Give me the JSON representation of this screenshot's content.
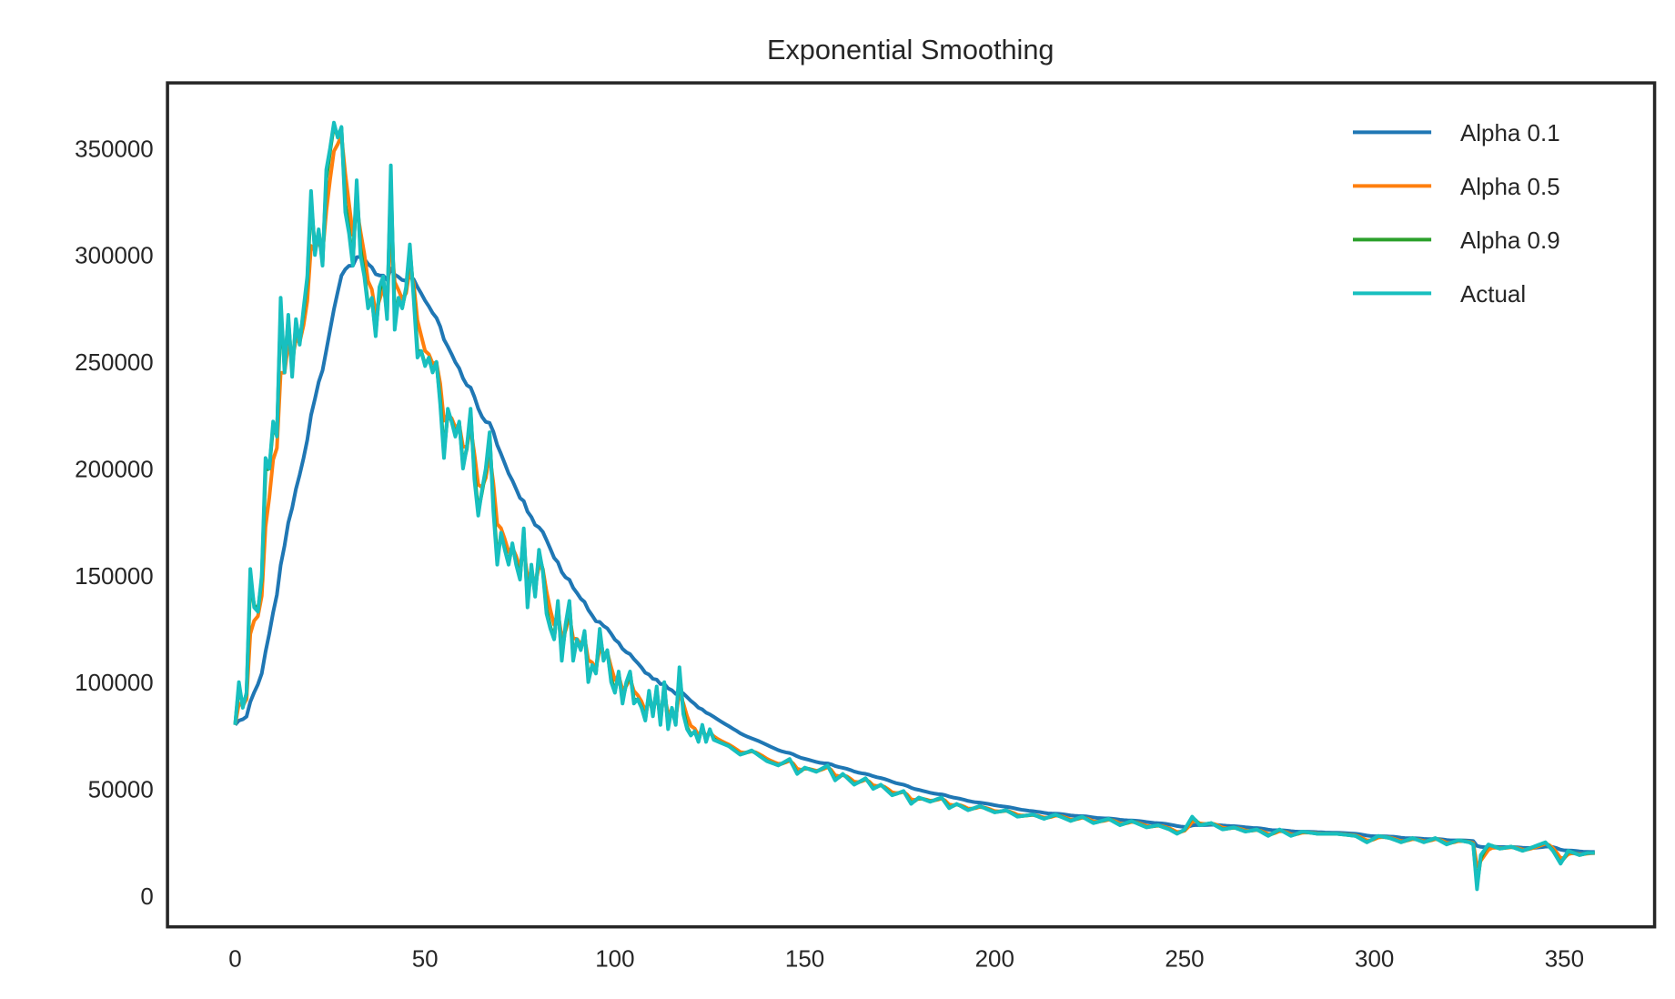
{
  "chart_data": {
    "type": "line",
    "title": "Exponential Smoothing",
    "xlabel": "",
    "ylabel": "",
    "xlim": [
      -18,
      374
    ],
    "ylim": [
      -15000,
      380000
    ],
    "x_ticks": [
      "0",
      "50",
      "100",
      "150",
      "200",
      "250",
      "300",
      "350"
    ],
    "y_ticks": [
      "0",
      "50000",
      "100000",
      "150000",
      "200000",
      "250000",
      "300000",
      "350000"
    ],
    "grid": false,
    "legend_position": "top-right",
    "legend": [
      "Alpha 0.1",
      "Alpha 0.5",
      "Alpha 0.9",
      "Actual"
    ],
    "colors": {
      "Alpha 0.1": "#1f77b4",
      "Alpha 0.5": "#ff7f0e",
      "Alpha 0.9": "#2ca02c",
      "Actual": "#17bfbf",
      "frame": "#262626"
    },
    "smoothing_alphas": [
      0.1,
      0.5,
      0.9
    ],
    "series_note_keys": [
      "x",
      "actual"
    ],
    "actual_keypoints": {
      "x": [
        0,
        1,
        2,
        3,
        4,
        5,
        6,
        7,
        8,
        9,
        10,
        11,
        12,
        13,
        14,
        15,
        16,
        17,
        18,
        19,
        20,
        21,
        22,
        23,
        24,
        25,
        26,
        27,
        28,
        29,
        30,
        31,
        32,
        33,
        34,
        35,
        36,
        37,
        38,
        39,
        40,
        41,
        42,
        43,
        44,
        45,
        46,
        47,
        48,
        49,
        50,
        51,
        52,
        53,
        54,
        55,
        56,
        57,
        58,
        59,
        60,
        61,
        62,
        63,
        64,
        65,
        66,
        67,
        68,
        69,
        70,
        71,
        72,
        73,
        74,
        75,
        76,
        77,
        78,
        79,
        80,
        81,
        82,
        83,
        84,
        85,
        86,
        87,
        88,
        89,
        90,
        91,
        92,
        93,
        94,
        95,
        96,
        97,
        98,
        99,
        100,
        101,
        102,
        103,
        104,
        105,
        106,
        107,
        108,
        109,
        110,
        111,
        112,
        113,
        114,
        115,
        116,
        117,
        118,
        119,
        120,
        121,
        122,
        123,
        124,
        125,
        126,
        130,
        133,
        136,
        140,
        143,
        146,
        148,
        150,
        153,
        156,
        158,
        160,
        163,
        166,
        168,
        170,
        173,
        176,
        178,
        180,
        183,
        186,
        188,
        190,
        193,
        196,
        200,
        203,
        206,
        210,
        213,
        216,
        220,
        223,
        226,
        230,
        233,
        236,
        240,
        243,
        246,
        248,
        250,
        252,
        254,
        257,
        260,
        263,
        266,
        269,
        272,
        275,
        278,
        281,
        285,
        290,
        295,
        298,
        301,
        304,
        307,
        310,
        313,
        316,
        319,
        322,
        325,
        326,
        327,
        328,
        330,
        333,
        336,
        339,
        342,
        345,
        347,
        349,
        351,
        354,
        356,
        358
      ],
      "actual": [
        80000,
        100000,
        88000,
        95000,
        153000,
        135000,
        133000,
        150000,
        205000,
        200000,
        222000,
        215000,
        280000,
        245000,
        272000,
        243000,
        270000,
        258000,
        275000,
        290000,
        330000,
        300000,
        312000,
        295000,
        340000,
        350000,
        362000,
        355000,
        360000,
        320000,
        310000,
        295000,
        335000,
        300000,
        290000,
        275000,
        280000,
        262000,
        285000,
        290000,
        270000,
        342000,
        265000,
        280000,
        275000,
        285000,
        305000,
        280000,
        252000,
        255000,
        248000,
        252000,
        245000,
        250000,
        230000,
        205000,
        228000,
        222000,
        215000,
        222000,
        200000,
        210000,
        228000,
        195000,
        178000,
        190000,
        200000,
        217000,
        180000,
        155000,
        170000,
        162000,
        155000,
        165000,
        155000,
        148000,
        172000,
        135000,
        155000,
        140000,
        162000,
        152000,
        132000,
        125000,
        120000,
        138000,
        110000,
        127000,
        138000,
        110000,
        120000,
        115000,
        124000,
        100000,
        108000,
        104000,
        125000,
        110000,
        115000,
        100000,
        95000,
        105000,
        90000,
        100000,
        105000,
        90000,
        92000,
        88000,
        82000,
        96000,
        84000,
        98000,
        80000,
        100000,
        78000,
        88000,
        80000,
        107000,
        85000,
        78000,
        75000,
        77000,
        72000,
        80000,
        72000,
        78000,
        73000,
        70000,
        66000,
        68000,
        63000,
        61000,
        64000,
        57000,
        60000,
        58000,
        61000,
        54000,
        57000,
        52000,
        55000,
        50000,
        52000,
        47000,
        49000,
        43000,
        46000,
        44000,
        46000,
        41000,
        43000,
        40000,
        42000,
        39000,
        40000,
        37000,
        38000,
        36000,
        38000,
        35000,
        37000,
        34000,
        36000,
        33000,
        35000,
        32000,
        33000,
        31000,
        29000,
        31000,
        37000,
        33000,
        34000,
        31000,
        32000,
        30000,
        31000,
        28000,
        31000,
        28000,
        30000,
        29000,
        29000,
        28000,
        25000,
        28000,
        27000,
        25000,
        27000,
        25000,
        27000,
        24000,
        26000,
        25000,
        24000,
        3000,
        19000,
        24000,
        22000,
        23000,
        21000,
        23000,
        25000,
        21000,
        15000,
        21000,
        19000,
        20000,
        20000
      ]
    }
  }
}
